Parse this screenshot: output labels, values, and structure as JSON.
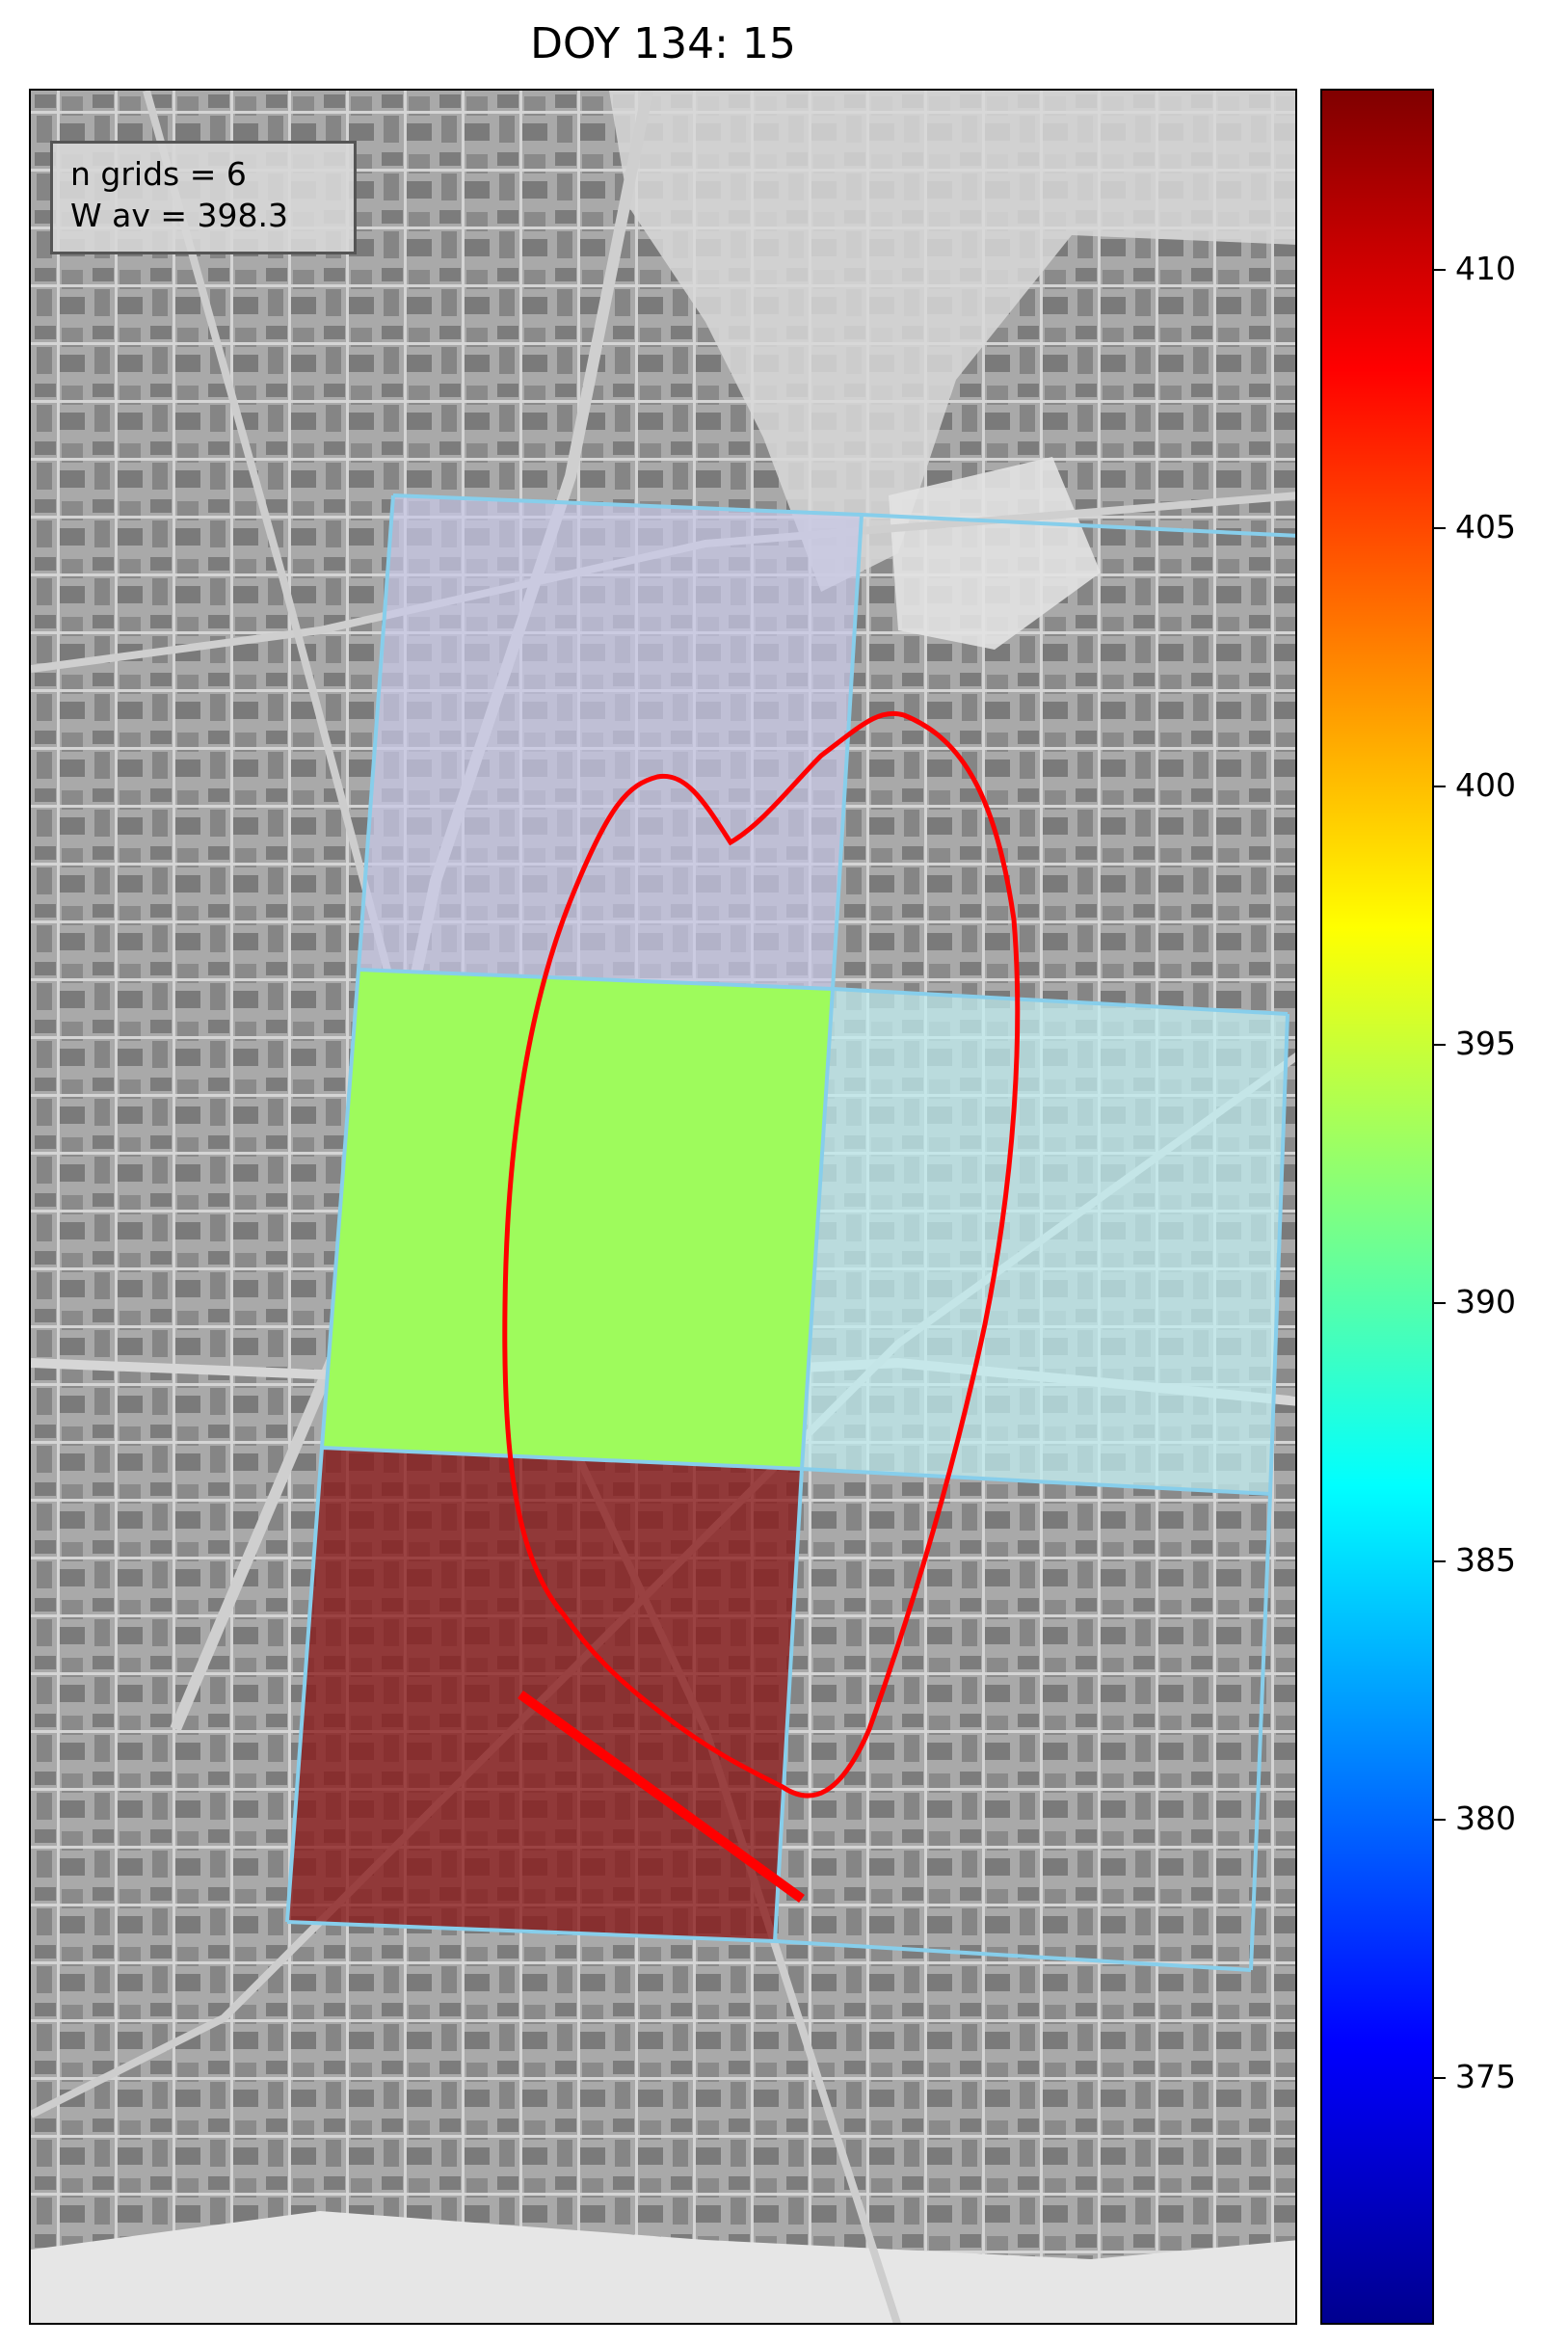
{
  "title": "DOY 134: 15",
  "info": {
    "line1": "n grids = 6",
    "line2": "W av = 398.3"
  },
  "colorbar": {
    "colormap": "jet",
    "min": 371,
    "max": 413.5,
    "ticks": [
      "410",
      "405",
      "400",
      "395",
      "390",
      "385",
      "380",
      "375"
    ]
  },
  "grids": [
    {
      "id": "grid-top-left",
      "value": null,
      "shade": "#c8c8e6"
    },
    {
      "id": "grid-middle-left",
      "value": 396,
      "color": "#9efb5c"
    },
    {
      "id": "grid-middle-right",
      "value": null,
      "shade": "#c0ecef"
    },
    {
      "id": "grid-bottom-left",
      "value": 412.5,
      "color": "#8b1a1a"
    },
    {
      "id": "grid-top-right",
      "value": null
    },
    {
      "id": "grid-bottom-right",
      "value": null
    }
  ],
  "colors": {
    "grid_outline": "#87ceeb",
    "footprint": "#ff0000",
    "wind_line": "#ff0000"
  }
}
